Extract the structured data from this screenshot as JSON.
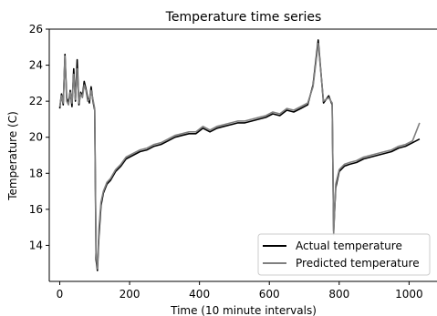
{
  "chart_data": {
    "type": "line",
    "title": "Temperature time series",
    "xlabel": "Time (10 minute intervals)",
    "ylabel": "Temperature (C)",
    "xlim": [
      -30,
      1080
    ],
    "ylim": [
      12.0,
      26.0
    ],
    "xticks": [
      "0",
      "200",
      "400",
      "600",
      "800",
      "1000"
    ],
    "yticks": [
      "14",
      "16",
      "18",
      "20",
      "22",
      "24",
      "26"
    ],
    "grid": false,
    "legend": "bottom-right",
    "series": [
      {
        "name": "Actual temperature",
        "color": "#000000",
        "x": [
          0,
          5,
          10,
          15,
          20,
          25,
          30,
          35,
          40,
          45,
          50,
          55,
          60,
          65,
          70,
          75,
          80,
          85,
          90,
          95,
          100,
          104,
          108,
          112,
          118,
          125,
          135,
          145,
          160,
          175,
          190,
          210,
          230,
          250,
          270,
          290,
          310,
          330,
          350,
          370,
          390,
          410,
          430,
          450,
          470,
          490,
          510,
          530,
          550,
          570,
          590,
          610,
          630,
          650,
          670,
          690,
          710,
          725,
          740,
          755,
          770,
          780,
          784,
          790,
          800,
          815,
          830,
          850,
          870,
          890,
          910,
          930,
          950,
          970,
          990,
          1010,
          1030
        ],
        "y": [
          21.6,
          22.4,
          21.8,
          24.6,
          22.2,
          21.9,
          22.6,
          21.7,
          23.8,
          22.0,
          24.3,
          21.8,
          22.5,
          22.3,
          23.1,
          22.7,
          22.2,
          21.9,
          22.8,
          22.0,
          21.5,
          13.2,
          12.6,
          14.5,
          16.2,
          16.9,
          17.4,
          17.6,
          18.1,
          18.4,
          18.8,
          19.0,
          19.2,
          19.3,
          19.5,
          19.6,
          19.8,
          20.0,
          20.1,
          20.2,
          20.2,
          20.5,
          20.3,
          20.5,
          20.6,
          20.7,
          20.8,
          20.8,
          20.9,
          21.0,
          21.1,
          21.3,
          21.2,
          21.5,
          21.4,
          21.6,
          21.8,
          22.9,
          25.4,
          21.9,
          22.3,
          21.8,
          14.8,
          17.2,
          18.1,
          18.4,
          18.5,
          18.6,
          18.8,
          18.9,
          19.0,
          19.1,
          19.2,
          19.4,
          19.5,
          19.7,
          19.9
        ]
      },
      {
        "name": "Predicted temperature",
        "color": "#808080",
        "x": [
          0,
          5,
          10,
          15,
          20,
          25,
          30,
          35,
          40,
          45,
          50,
          55,
          60,
          65,
          70,
          75,
          80,
          85,
          90,
          95,
          100,
          104,
          108,
          112,
          118,
          125,
          135,
          145,
          160,
          175,
          190,
          210,
          230,
          250,
          270,
          290,
          310,
          330,
          350,
          370,
          390,
          410,
          430,
          450,
          470,
          490,
          510,
          530,
          550,
          570,
          590,
          610,
          630,
          650,
          670,
          690,
          710,
          725,
          740,
          755,
          770,
          780,
          784,
          790,
          800,
          815,
          830,
          850,
          870,
          890,
          910,
          930,
          950,
          970,
          990,
          1010,
          1030
        ],
        "y": [
          21.7,
          22.3,
          21.9,
          24.5,
          22.0,
          21.8,
          22.5,
          21.9,
          23.5,
          22.1,
          23.8,
          21.9,
          22.4,
          22.2,
          22.9,
          22.6,
          22.0,
          22.1,
          22.6,
          22.1,
          21.6,
          13.6,
          12.7,
          14.9,
          16.4,
          17.0,
          17.5,
          17.7,
          18.2,
          18.5,
          18.9,
          19.1,
          19.3,
          19.4,
          19.6,
          19.7,
          19.9,
          20.1,
          20.2,
          20.3,
          20.3,
          20.6,
          20.4,
          20.6,
          20.7,
          20.8,
          20.9,
          20.9,
          21.0,
          21.1,
          21.2,
          21.4,
          21.3,
          21.6,
          21.5,
          21.7,
          21.9,
          22.8,
          25.2,
          22.0,
          22.2,
          21.9,
          14.6,
          17.4,
          18.2,
          18.5,
          18.6,
          18.7,
          18.9,
          19.0,
          19.1,
          19.2,
          19.3,
          19.5,
          19.6,
          19.8,
          20.8
        ]
      }
    ]
  }
}
